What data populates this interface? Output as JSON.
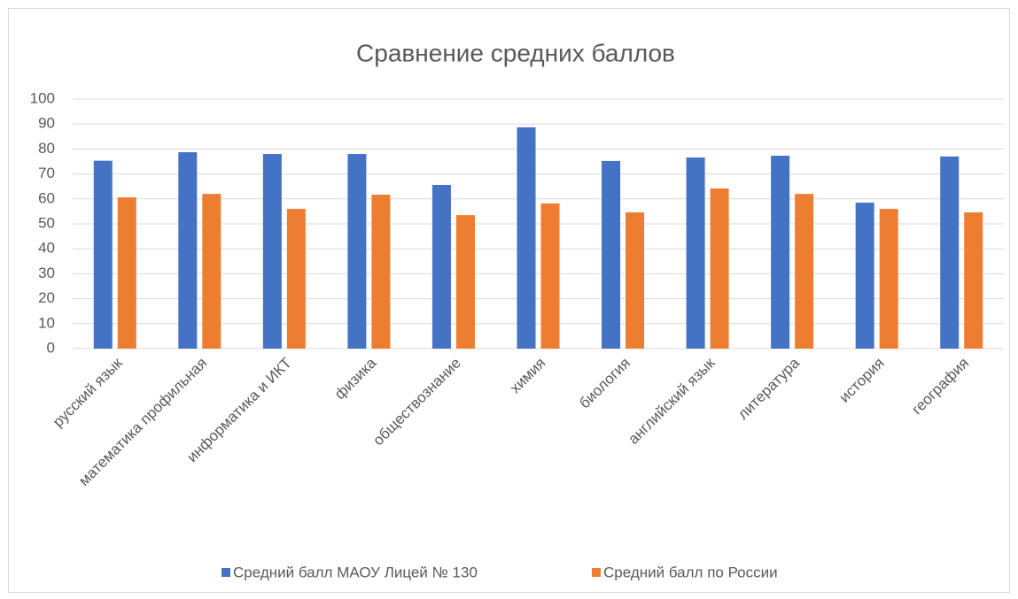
{
  "chart_data": {
    "type": "bar",
    "title": "Сравнение средних баллов",
    "categories": [
      "русский язык",
      "математика профильная",
      "информатика и ИКТ",
      "физика",
      "обществознание",
      "химия",
      "биология",
      "английский язык",
      "литература",
      "история",
      "география"
    ],
    "series": [
      {
        "name": "Средний балл МАОУ Лицей № 130",
        "color": "#4472c4",
        "values": [
          75.3,
          78.7,
          78,
          78,
          65.6,
          88.7,
          75.2,
          76.6,
          77.3,
          58.5,
          77
        ]
      },
      {
        "name": "Средний балл по России",
        "color": "#ed7d31",
        "values": [
          60.6,
          62,
          56,
          61.7,
          53.5,
          58.2,
          54.6,
          64.2,
          62,
          56,
          54.6
        ]
      }
    ],
    "ylim": [
      0,
      100
    ],
    "yticks": [
      0,
      10,
      20,
      30,
      40,
      50,
      60,
      70,
      80,
      90,
      100
    ],
    "grid": true,
    "legend": "bottom"
  }
}
